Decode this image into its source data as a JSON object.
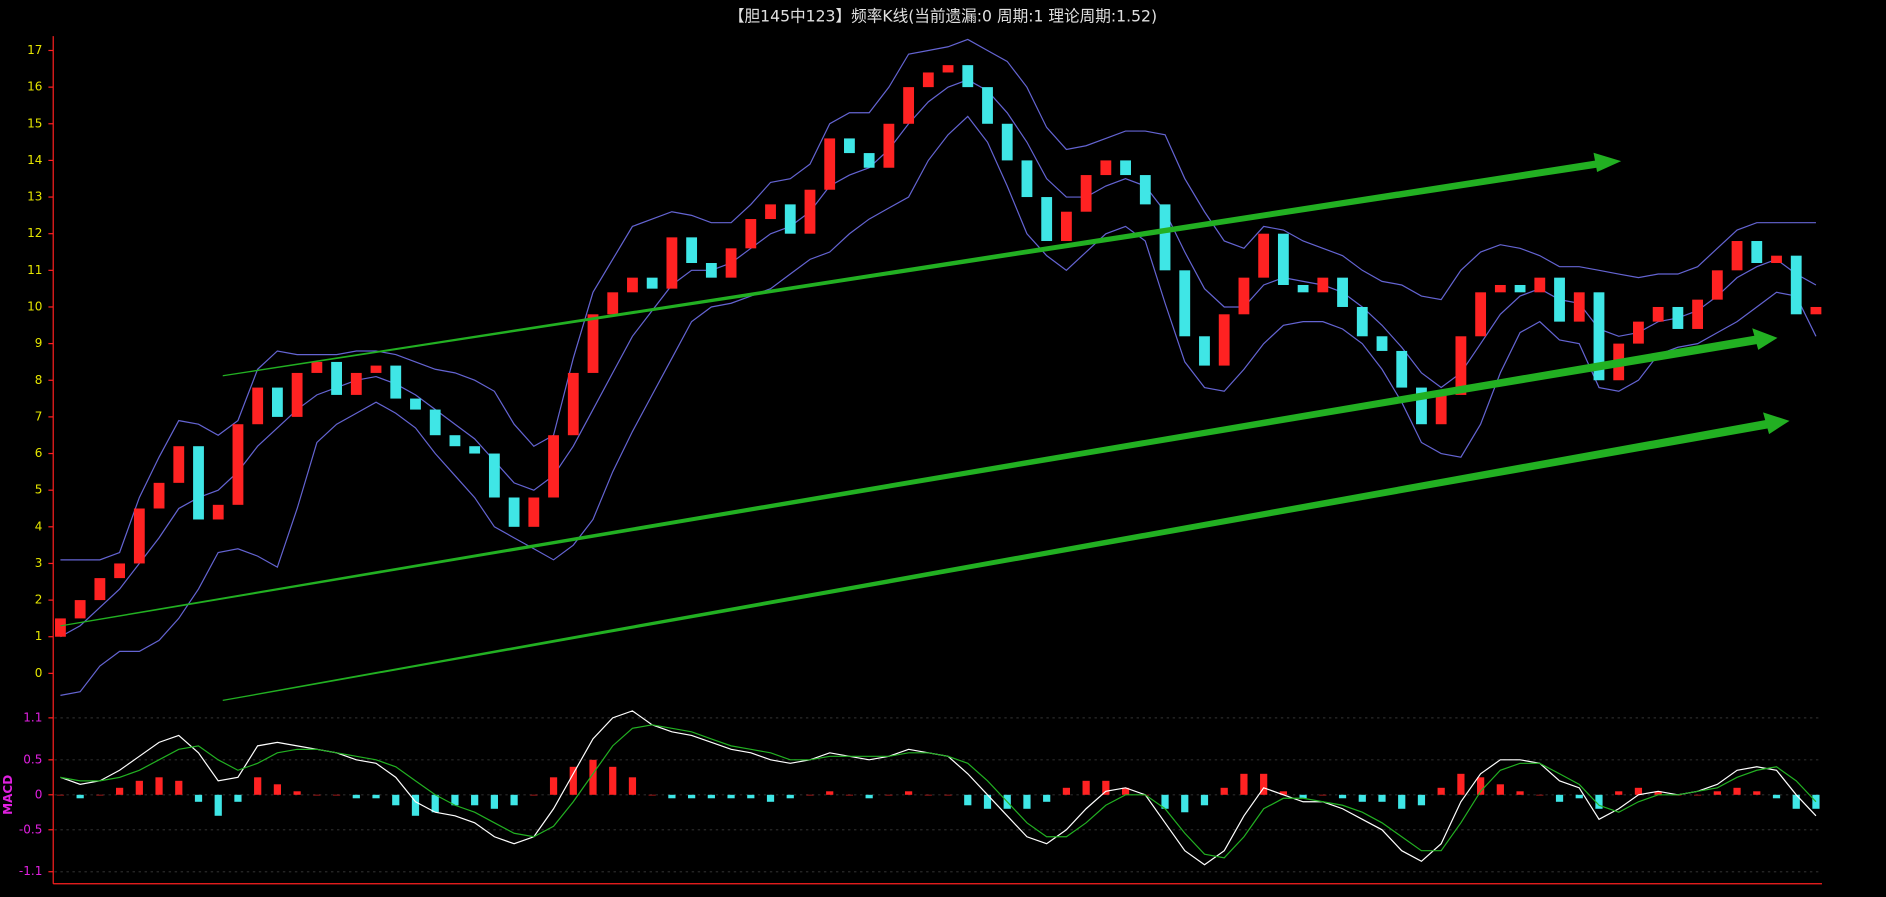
{
  "chart_data": [
    {
      "type": "candlestick",
      "title": "【胆145中123】频率K线(当前遗漏:0 周期:1 理论周期:1.52)",
      "up_color": "#ff2222",
      "down_color": "#3fe6e6",
      "tick_color": "#e6e600",
      "axis_color": "#ff2020",
      "grid": false,
      "ylim": [
        -0.8,
        17.4
      ],
      "yticks": [
        0,
        1,
        2,
        3,
        4,
        5,
        6,
        7,
        8,
        9,
        10,
        11,
        12,
        13,
        14,
        15,
        16,
        17
      ],
      "open": [
        1.0,
        1.5,
        2.0,
        2.6,
        3.0,
        4.5,
        5.2,
        6.2,
        4.2,
        4.6,
        6.8,
        7.8,
        7.0,
        8.2,
        8.5,
        7.6,
        8.2,
        8.4,
        7.5,
        7.2,
        6.5,
        6.2,
        6.0,
        4.8,
        4.0,
        4.8,
        6.5,
        8.2,
        9.8,
        10.4,
        10.8,
        10.5,
        11.9,
        11.2,
        10.8,
        11.6,
        12.4,
        12.8,
        12.0,
        13.2,
        14.6,
        14.2,
        13.8,
        15.0,
        16.0,
        16.4,
        16.6,
        16.0,
        15.0,
        14.0,
        13.0,
        11.8,
        12.6,
        13.6,
        14.0,
        13.6,
        12.8,
        11.0,
        9.2,
        8.4,
        9.8,
        10.8,
        12.0,
        10.6,
        10.4,
        10.8,
        10.0,
        9.2,
        8.8,
        7.8,
        6.8,
        7.6,
        9.2,
        10.4,
        10.6,
        10.4,
        10.8,
        9.6,
        10.4,
        8.0,
        9.0,
        9.6,
        10.0,
        9.4,
        10.2,
        11.0,
        11.8,
        11.2,
        11.4,
        9.8
      ],
      "close": [
        1.5,
        2.0,
        2.6,
        3.0,
        4.5,
        5.2,
        6.2,
        4.2,
        4.6,
        6.8,
        7.8,
        7.0,
        8.2,
        8.5,
        7.6,
        8.2,
        8.4,
        7.5,
        7.2,
        6.5,
        6.2,
        6.0,
        4.8,
        4.0,
        4.8,
        6.5,
        8.2,
        9.8,
        10.4,
        10.8,
        10.5,
        11.9,
        11.2,
        10.8,
        11.6,
        12.4,
        12.8,
        12.0,
        13.2,
        14.6,
        14.2,
        13.8,
        15.0,
        16.0,
        16.4,
        16.6,
        16.0,
        15.0,
        14.0,
        13.0,
        11.8,
        12.6,
        13.6,
        14.0,
        13.6,
        12.8,
        11.0,
        9.2,
        8.4,
        9.8,
        10.8,
        12.0,
        10.6,
        10.4,
        10.8,
        10.0,
        9.2,
        8.8,
        7.8,
        6.8,
        7.6,
        9.2,
        10.4,
        10.6,
        10.4,
        10.8,
        9.6,
        10.4,
        8.0,
        9.0,
        9.6,
        10.0,
        9.4,
        10.2,
        11.0,
        11.8,
        11.2,
        11.4,
        9.8,
        10.0
      ],
      "series": [
        {
          "color": "#6464d2",
          "values": [
            3.1,
            3.1,
            3.1,
            3.3,
            4.8,
            5.9,
            6.9,
            6.8,
            6.5,
            6.9,
            8.3,
            8.8,
            8.7,
            8.7,
            8.7,
            8.8,
            8.8,
            8.7,
            8.5,
            8.3,
            8.2,
            8.0,
            7.7,
            6.8,
            6.2,
            6.5,
            8.6,
            10.4,
            11.3,
            12.2,
            12.4,
            12.6,
            12.5,
            12.3,
            12.3,
            12.8,
            13.4,
            13.5,
            13.9,
            15.0,
            15.3,
            15.3,
            16.0,
            16.9,
            17.0,
            17.1,
            17.3,
            17.0,
            16.7,
            16.0,
            14.9,
            14.3,
            14.4,
            14.6,
            14.8,
            14.8,
            14.7,
            13.5,
            12.6,
            11.8,
            11.6,
            12.2,
            12.1,
            11.8,
            11.6,
            11.4,
            11.0,
            10.7,
            10.6,
            10.3,
            10.2,
            11.0,
            11.5,
            11.7,
            11.6,
            11.4,
            11.1,
            11.1,
            11.0,
            10.9,
            10.8,
            10.9,
            10.9,
            11.1,
            11.6,
            12.1,
            12.3,
            12.3,
            12.3,
            12.3
          ]
        },
        {
          "color": "#6464d2",
          "values": [
            1.0,
            1.3,
            1.8,
            2.3,
            3.0,
            3.7,
            4.5,
            4.8,
            5.0,
            5.5,
            6.2,
            6.7,
            7.2,
            7.6,
            7.8,
            8.0,
            8.1,
            7.9,
            7.6,
            7.2,
            6.8,
            6.4,
            5.8,
            5.2,
            5.0,
            5.4,
            6.2,
            7.2,
            8.2,
            9.2,
            9.9,
            10.6,
            11.0,
            11.0,
            11.2,
            11.6,
            12.0,
            12.2,
            12.6,
            13.3,
            13.6,
            13.8,
            14.3,
            15.0,
            15.6,
            16.0,
            16.2,
            15.9,
            15.3,
            14.5,
            13.5,
            13.0,
            13.0,
            13.3,
            13.5,
            13.3,
            12.6,
            11.5,
            10.5,
            10.0,
            10.0,
            10.6,
            10.8,
            10.7,
            10.6,
            10.4,
            10.0,
            9.5,
            8.9,
            8.2,
            7.8,
            8.2,
            9.0,
            9.8,
            10.3,
            10.5,
            10.2,
            10.1,
            9.4,
            9.2,
            9.3,
            9.6,
            9.7,
            9.9,
            10.3,
            10.8,
            11.1,
            11.3,
            10.9,
            10.6
          ]
        },
        {
          "color": "#6464d2",
          "values": [
            -0.6,
            -0.5,
            0.2,
            0.6,
            0.6,
            0.9,
            1.5,
            2.3,
            3.3,
            3.4,
            3.2,
            2.9,
            4.5,
            6.3,
            6.8,
            7.1,
            7.4,
            7.1,
            6.7,
            6.0,
            5.4,
            4.8,
            4.0,
            3.7,
            3.4,
            3.1,
            3.5,
            4.2,
            5.5,
            6.6,
            7.6,
            8.6,
            9.6,
            10.0,
            10.1,
            10.3,
            10.5,
            10.9,
            11.3,
            11.5,
            12.0,
            12.4,
            12.7,
            13.0,
            14.0,
            14.7,
            15.2,
            14.5,
            13.3,
            12.0,
            11.4,
            11.0,
            11.5,
            12.0,
            12.2,
            11.8,
            10.1,
            8.5,
            7.8,
            7.7,
            8.3,
            9.0,
            9.5,
            9.6,
            9.6,
            9.4,
            9.0,
            8.3,
            7.4,
            6.3,
            6.0,
            5.9,
            6.8,
            8.2,
            9.3,
            9.6,
            9.1,
            9.0,
            7.8,
            7.7,
            8.0,
            8.7,
            8.9,
            9.0,
            9.3,
            9.6,
            10.0,
            10.4,
            10.3,
            9.2
          ]
        }
      ]
    },
    {
      "type": "macd",
      "ylabel": "MACD",
      "tick_color": "#e020e0",
      "axis_color": "#ff2020",
      "up_color": "#ff2222",
      "down_color": "#3fe6e6",
      "grid": true,
      "ylim": [
        -1.2,
        1.2
      ],
      "yticks": [
        1.1,
        0.5,
        0,
        -0.5,
        -1.1
      ],
      "series": [
        {
          "color": "#ffffff",
          "values": [
            0.25,
            0.15,
            0.2,
            0.35,
            0.55,
            0.75,
            0.85,
            0.6,
            0.2,
            0.25,
            0.7,
            0.75,
            0.7,
            0.65,
            0.6,
            0.5,
            0.45,
            0.25,
            -0.1,
            -0.25,
            -0.3,
            -0.4,
            -0.6,
            -0.7,
            -0.6,
            -0.2,
            0.3,
            0.8,
            1.1,
            1.2,
            1.0,
            0.9,
            0.85,
            0.75,
            0.65,
            0.6,
            0.5,
            0.45,
            0.5,
            0.6,
            0.55,
            0.5,
            0.55,
            0.65,
            0.6,
            0.55,
            0.3,
            0.0,
            -0.3,
            -0.6,
            -0.7,
            -0.5,
            -0.2,
            0.05,
            0.1,
            0.0,
            -0.4,
            -0.8,
            -1.0,
            -0.8,
            -0.3,
            0.1,
            0.0,
            -0.1,
            -0.1,
            -0.2,
            -0.35,
            -0.5,
            -0.8,
            -0.95,
            -0.7,
            -0.1,
            0.3,
            0.5,
            0.5,
            0.45,
            0.2,
            0.1,
            -0.35,
            -0.2,
            0.0,
            0.05,
            0.0,
            0.05,
            0.15,
            0.35,
            0.4,
            0.35,
            0.0,
            -0.3
          ]
        },
        {
          "color": "#22b022",
          "values": [
            0.25,
            0.2,
            0.2,
            0.25,
            0.35,
            0.5,
            0.65,
            0.7,
            0.5,
            0.35,
            0.45,
            0.6,
            0.65,
            0.65,
            0.6,
            0.55,
            0.5,
            0.4,
            0.2,
            0.0,
            -0.15,
            -0.25,
            -0.4,
            -0.55,
            -0.6,
            -0.45,
            -0.1,
            0.3,
            0.7,
            0.95,
            1.0,
            0.95,
            0.9,
            0.8,
            0.7,
            0.65,
            0.6,
            0.5,
            0.5,
            0.55,
            0.55,
            0.55,
            0.55,
            0.6,
            0.6,
            0.55,
            0.45,
            0.2,
            -0.1,
            -0.4,
            -0.6,
            -0.6,
            -0.4,
            -0.15,
            0.0,
            0.0,
            -0.2,
            -0.55,
            -0.85,
            -0.9,
            -0.6,
            -0.2,
            -0.05,
            -0.05,
            -0.1,
            -0.15,
            -0.25,
            -0.4,
            -0.6,
            -0.8,
            -0.8,
            -0.4,
            0.05,
            0.35,
            0.45,
            0.45,
            0.3,
            0.15,
            -0.15,
            -0.25,
            -0.1,
            0.0,
            0.0,
            0.05,
            0.1,
            0.25,
            0.35,
            0.4,
            0.2,
            -0.1
          ]
        }
      ],
      "histogram": [
        0,
        -0.05,
        0,
        0.1,
        0.2,
        0.25,
        0.2,
        -0.1,
        -0.3,
        -0.1,
        0.25,
        0.15,
        0.05,
        0,
        0,
        -0.05,
        -0.05,
        -0.15,
        -0.3,
        -0.25,
        -0.15,
        -0.15,
        -0.2,
        -0.15,
        0,
        0.25,
        0.4,
        0.5,
        0.4,
        0.25,
        0,
        -0.05,
        -0.05,
        -0.05,
        -0.05,
        -0.05,
        -0.1,
        -0.05,
        0,
        0.05,
        0,
        -0.05,
        0,
        0.05,
        0,
        0,
        -0.15,
        -0.2,
        -0.2,
        -0.2,
        -0.1,
        0.1,
        0.2,
        0.2,
        0.1,
        0,
        -0.2,
        -0.25,
        -0.15,
        0.1,
        0.3,
        0.3,
        0.05,
        -0.05,
        0,
        -0.05,
        -0.1,
        -0.1,
        -0.2,
        -0.15,
        0.1,
        0.3,
        0.25,
        0.15,
        0.05,
        0,
        -0.1,
        -0.05,
        -0.2,
        0.05,
        0.1,
        0.05,
        0,
        0,
        0.05,
        0.1,
        0.05,
        -0.05,
        -0.2,
        -0.2
      ]
    }
  ]
}
